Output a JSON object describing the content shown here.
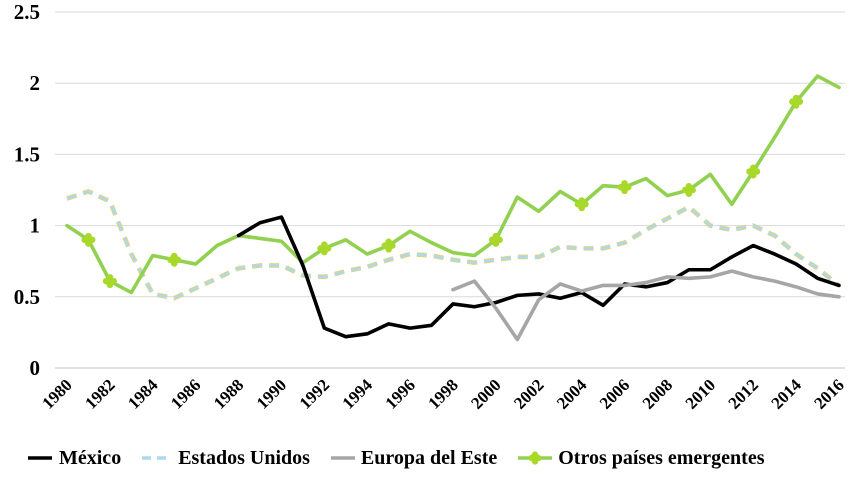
{
  "chart_data": {
    "type": "line",
    "title": "",
    "xlabel": "",
    "ylabel": "",
    "ylim": [
      0,
      2.5
    ],
    "grid": true,
    "legend_position": "bottom",
    "y_ticks": [
      {
        "label": "0",
        "value": 0
      },
      {
        "label": "0.5",
        "value": 0.5
      },
      {
        "label": "1",
        "value": 1
      },
      {
        "label": "1.5",
        "value": 1.5
      },
      {
        "label": "2",
        "value": 2
      },
      {
        "label": "2.5",
        "value": 2.5
      }
    ],
    "x": [
      1980,
      1981,
      1982,
      1983,
      1984,
      1985,
      1986,
      1987,
      1988,
      1989,
      1990,
      1991,
      1992,
      1993,
      1994,
      1995,
      1996,
      1997,
      1998,
      1999,
      2000,
      2001,
      2002,
      2003,
      2004,
      2005,
      2006,
      2007,
      2008,
      2009,
      2010,
      2011,
      2012,
      2013,
      2014,
      2015,
      2016
    ],
    "x_tick_years": [
      1980,
      1982,
      1984,
      1986,
      1988,
      1990,
      1992,
      1994,
      1996,
      1998,
      2000,
      2002,
      2004,
      2006,
      2008,
      2010,
      2012,
      2014,
      2016
    ],
    "series": [
      {
        "name": "México",
        "color": "#000000",
        "style": "solid",
        "values": [
          null,
          null,
          null,
          null,
          null,
          null,
          null,
          null,
          0.93,
          1.02,
          1.06,
          0.72,
          0.28,
          0.22,
          0.24,
          0.31,
          0.28,
          0.3,
          0.45,
          0.43,
          0.46,
          0.51,
          0.52,
          0.49,
          0.53,
          0.44,
          0.59,
          0.57,
          0.6,
          0.69,
          0.69,
          0.78,
          0.86,
          0.8,
          0.73,
          0.63,
          0.58
        ]
      },
      {
        "name": "Estados Unidos",
        "color": "#a9dbee",
        "underlay_color": "#e9d079",
        "style": "dashed",
        "values": [
          1.19,
          1.24,
          1.17,
          0.8,
          0.52,
          0.49,
          0.56,
          0.63,
          0.7,
          0.72,
          0.72,
          0.65,
          0.64,
          0.68,
          0.71,
          0.76,
          0.8,
          0.79,
          0.76,
          0.74,
          0.76,
          0.78,
          0.78,
          0.85,
          0.84,
          0.84,
          0.88,
          0.97,
          1.05,
          1.13,
          1.0,
          0.97,
          1.0,
          0.93,
          0.8,
          0.7,
          0.58
        ]
      },
      {
        "name": "Europa del Este",
        "color": "#a6a6a6",
        "style": "solid",
        "values": [
          null,
          null,
          null,
          null,
          null,
          null,
          null,
          null,
          null,
          null,
          null,
          null,
          null,
          null,
          null,
          null,
          null,
          null,
          0.55,
          0.61,
          0.42,
          0.2,
          0.48,
          0.59,
          0.54,
          0.58,
          0.58,
          0.6,
          0.64,
          0.63,
          0.64,
          0.68,
          0.64,
          0.61,
          0.57,
          0.52,
          0.5
        ]
      },
      {
        "name": "Otros países emergentes",
        "color": "#92d050",
        "marker_color": "#a8d829",
        "style": "solid",
        "marker": "clover",
        "marker_years": [
          1981,
          1982,
          1985,
          1992,
          1995,
          2000,
          2004,
          2006,
          2009,
          2012,
          2014
        ],
        "values": [
          1.0,
          0.9,
          0.61,
          0.53,
          0.79,
          0.76,
          0.73,
          0.86,
          0.93,
          0.91,
          0.89,
          0.74,
          0.84,
          0.9,
          0.8,
          0.86,
          0.96,
          0.88,
          0.81,
          0.79,
          0.9,
          1.2,
          1.1,
          1.24,
          1.15,
          1.28,
          1.27,
          1.33,
          1.21,
          1.25,
          1.36,
          1.15,
          1.38,
          1.62,
          1.87,
          2.05,
          1.97
        ]
      }
    ],
    "colors": {
      "gridline": "#d9d9d9",
      "axis_line": "#c6c6c6",
      "background": "#ffffff",
      "text": "#000000"
    }
  }
}
